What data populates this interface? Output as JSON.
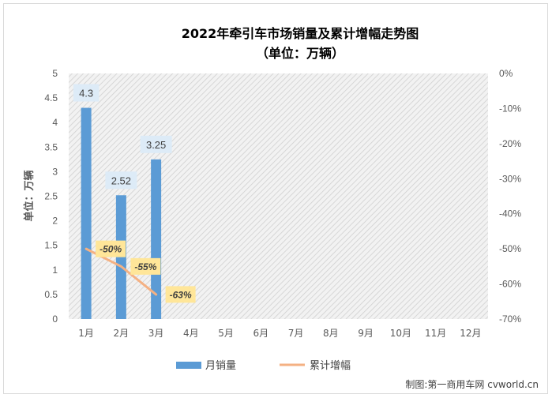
{
  "chart_data": {
    "type": "bar",
    "title_line1": "2022年牵引车市场销量及累计增幅走势图",
    "title_line2": "（单位：万辆）",
    "ylabel": "单位：万辆",
    "categories": [
      "1月",
      "2月",
      "3月",
      "4月",
      "5月",
      "6月",
      "7月",
      "8月",
      "9月",
      "10月",
      "11月",
      "12月"
    ],
    "series": [
      {
        "name": "月销量",
        "type": "bar",
        "axis": "left",
        "color": "#5b9bd5",
        "values": [
          4.3,
          2.52,
          3.25,
          null,
          null,
          null,
          null,
          null,
          null,
          null,
          null,
          null
        ],
        "labels": [
          "4.3",
          "2.52",
          "3.25"
        ]
      },
      {
        "name": "累计增幅",
        "type": "line",
        "axis": "right",
        "color": "#f4b183",
        "values": [
          -50,
          -55,
          -63,
          null,
          null,
          null,
          null,
          null,
          null,
          null,
          null,
          null
        ],
        "labels": [
          "-50%",
          "-55%",
          "-63%"
        ]
      }
    ],
    "y_left": {
      "min": 0,
      "max": 5,
      "ticks": [
        "0",
        "0.5",
        "1",
        "1.5",
        "2",
        "2.5",
        "3",
        "3.5",
        "4",
        "4.5",
        "5"
      ]
    },
    "y_right": {
      "min": -70,
      "max": 0,
      "ticks": [
        "0%",
        "-10%",
        "-20%",
        "-30%",
        "-40%",
        "-50%",
        "-60%",
        "-70%"
      ]
    },
    "grid": false,
    "plot_background": "hatched light gray",
    "legend": "bottom"
  },
  "source": "制图:第一商用车网 cvworld.cn"
}
